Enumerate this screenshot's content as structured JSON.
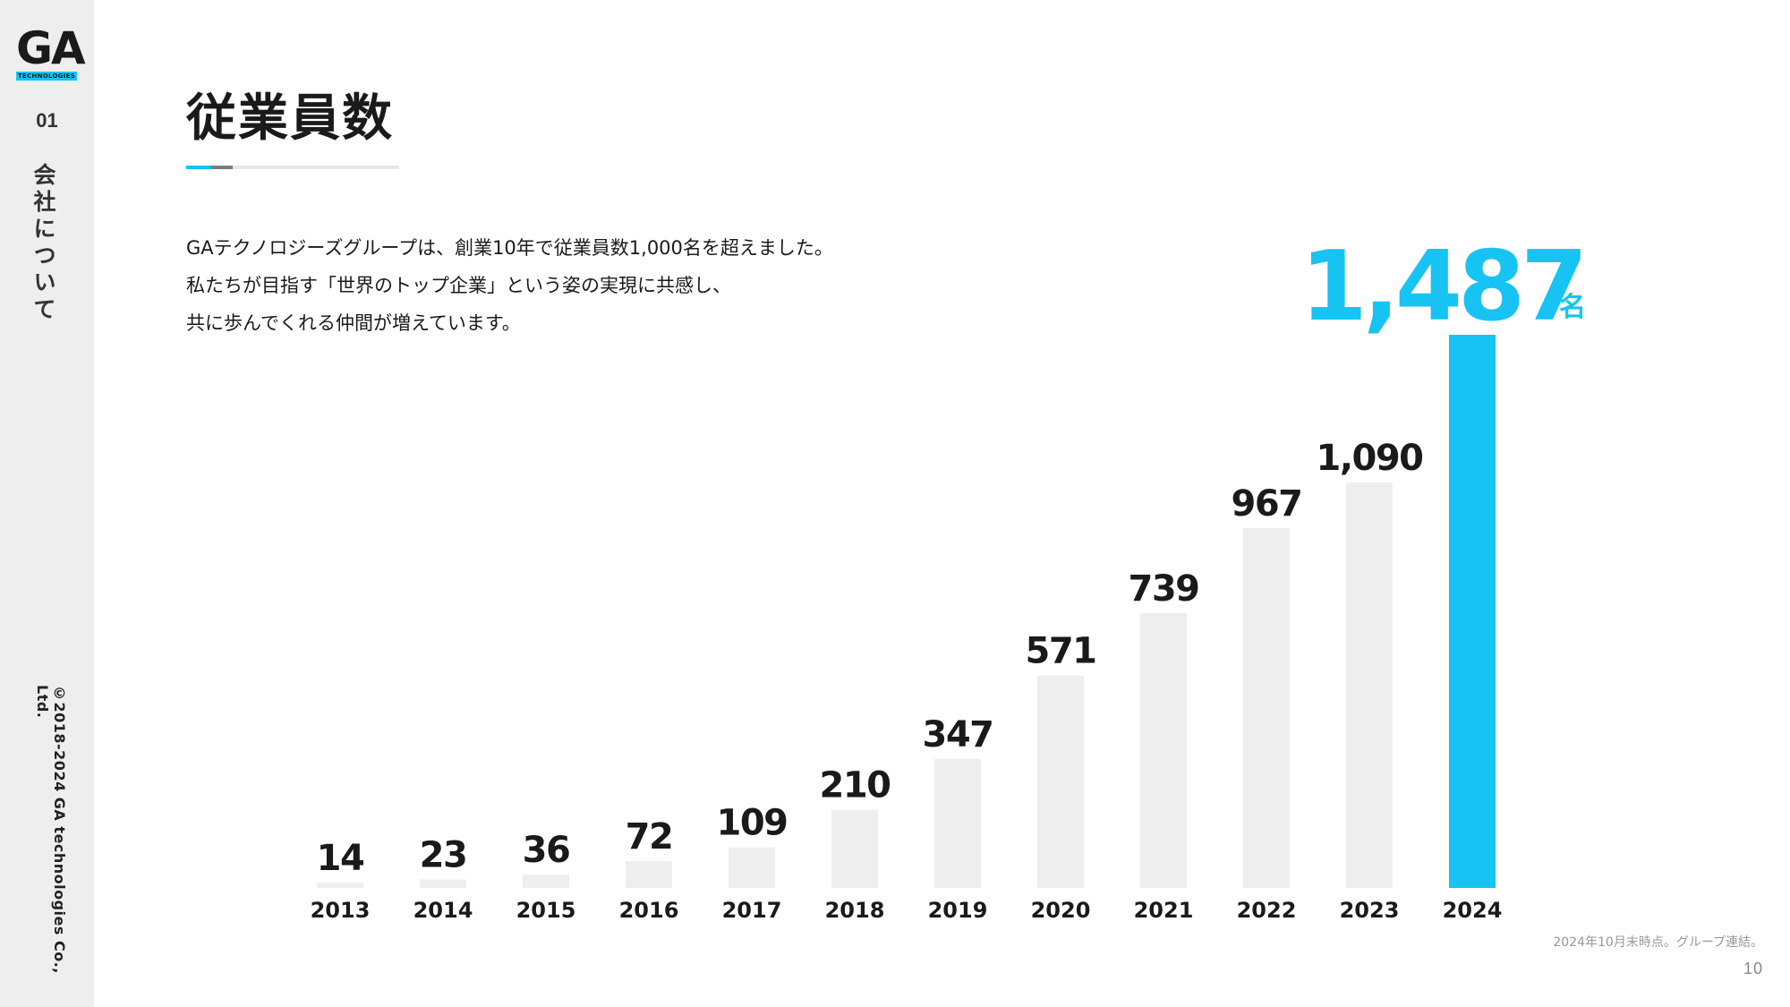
{
  "brand": {
    "logo_text": "GA",
    "logo_subtext": "TECHNOLOGIES"
  },
  "sidebar": {
    "section_number": "01",
    "section_name": "会社について",
    "copyright": "©2018-2024 GA technologies Co., Ltd."
  },
  "page": {
    "title": "従業員数",
    "description": [
      "GAテクノロジーズグループは、創業10年で従業員数1,000名を超えました。",
      "私たちが目指す「世界のトップ企業」という姿の実現に共感し、",
      "共に歩んでくれる仲間が増えています。"
    ],
    "footnote": "2024年10月末時点。グループ連結。",
    "page_number": "10"
  },
  "colors": {
    "accent": "#17c3f2",
    "bar": "#eeeeee",
    "text": "#1a1a1a",
    "gray": "#7d7d7d"
  },
  "chart_data": {
    "type": "bar",
    "categories": [
      "2013",
      "2014",
      "2015",
      "2016",
      "2017",
      "2018",
      "2019",
      "2020",
      "2021",
      "2022",
      "2023",
      "2024"
    ],
    "values": [
      14,
      23,
      36,
      72,
      109,
      210,
      347,
      571,
      739,
      967,
      1090,
      1487
    ],
    "data_labels": [
      "14",
      "23",
      "36",
      "72",
      "109",
      "210",
      "347",
      "571",
      "739",
      "967",
      "1,090",
      "1,487"
    ],
    "unit": "名",
    "highlight_index": 11,
    "ylim": [
      0,
      1487
    ]
  }
}
